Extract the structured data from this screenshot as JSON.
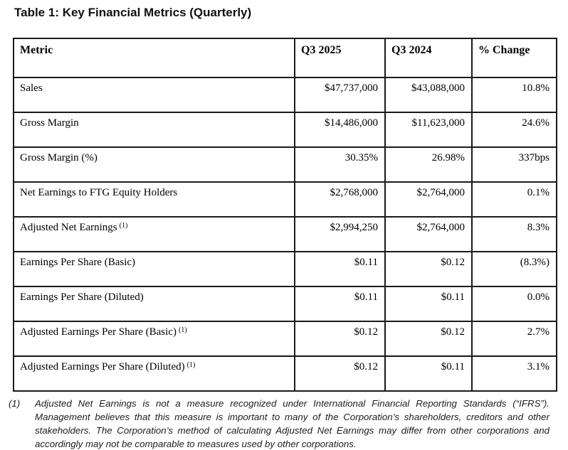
{
  "title": "Table 1: Key Financial Metrics (Quarterly)",
  "table": {
    "headers": [
      "Metric",
      "Q3 2025",
      "Q3 2024",
      "% Change"
    ],
    "rows": [
      {
        "metric": "Sales",
        "sup": "",
        "q3_2025": "$47,737,000",
        "q3_2024": "$43,088,000",
        "change": "10.8%"
      },
      {
        "metric": "Gross Margin",
        "sup": "",
        "q3_2025": "$14,486,000",
        "q3_2024": "$11,623,000",
        "change": "24.6%"
      },
      {
        "metric": "Gross Margin (%)",
        "sup": "",
        "q3_2025": "30.35%",
        "q3_2024": "26.98%",
        "change": "337bps"
      },
      {
        "metric": "Net Earnings to FTG Equity Holders",
        "sup": "",
        "q3_2025": "$2,768,000",
        "q3_2024": "$2,764,000",
        "change": "0.1%"
      },
      {
        "metric": "Adjusted Net Earnings",
        "sup": "(1)",
        "q3_2025": "$2,994,250",
        "q3_2024": "$2,764,000",
        "change": "8.3%"
      },
      {
        "metric": "Earnings Per Share (Basic)",
        "sup": "",
        "q3_2025": "$0.11",
        "q3_2024": "$0.12",
        "change": "(8.3%)"
      },
      {
        "metric": "Earnings Per Share (Diluted)",
        "sup": "",
        "q3_2025": "$0.11",
        "q3_2024": "$0.11",
        "change": "0.0%"
      },
      {
        "metric": "Adjusted Earnings Per Share (Basic)",
        "sup": "(1)",
        "q3_2025": "$0.12",
        "q3_2024": "$0.12",
        "change": "2.7%"
      },
      {
        "metric": "Adjusted Earnings Per Share (Diluted)",
        "sup": "(1)",
        "q3_2025": "$0.12",
        "q3_2024": "$0.11",
        "change": "3.1%"
      }
    ]
  },
  "footnote": {
    "marker": "(1)",
    "text": "Adjusted Net Earnings is not a measure recognized under International Financial Reporting Standards (“IFRS”). Management believes that this measure is important to many of the Corporation’s shareholders, creditors and other stakeholders. The Corporation’s method of calculating Adjusted Net Earnings may differ from other corporations and accordingly may not be comparable to measures used by other corporations."
  },
  "colors": {
    "background": "#ffffff",
    "text": "#000000",
    "border": "#1a1a1a"
  }
}
